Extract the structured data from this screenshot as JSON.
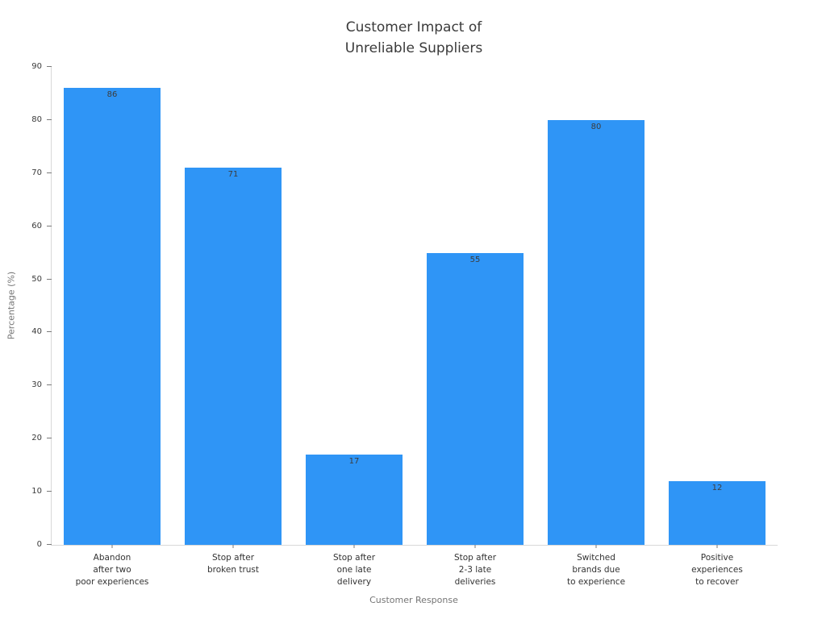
{
  "chart_data": {
    "type": "bar",
    "title": "Customer Impact of\nUnreliable Suppliers",
    "categories": [
      "Abandon\nafter two\npoor experiences",
      "Stop after\nbroken trust",
      "Stop after\none late\ndelivery",
      "Stop after\n2-3 late\ndeliveries",
      "Switched\nbrands due\nto experience",
      "Positive\nexperiences\nto recover"
    ],
    "values": [
      86,
      71,
      17,
      55,
      80,
      12
    ],
    "value_labels": [
      86,
      71,
      17,
      55,
      80,
      12
    ],
    "xlabel": "Customer Response",
    "ylabel": "Percentage (%)",
    "ylim": [
      0,
      90
    ],
    "yticks": [
      0,
      10,
      20,
      30,
      40,
      50,
      60,
      70,
      80,
      90
    ],
    "grid": false,
    "legend": null,
    "bar_width_ratio": 0.8,
    "colors": {
      "bar": "#2f95f6",
      "title_text": "#3a3a3a",
      "tick_text": "#3a3a3a",
      "axis_label_text": "#757575",
      "spine": "#d9d9d9",
      "value_label_text": "#3d3d3d"
    }
  }
}
